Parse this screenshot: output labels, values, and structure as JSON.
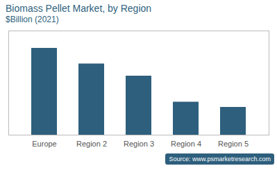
{
  "chart_data": {
    "type": "bar",
    "title": "Biomass Pellet Market, by Region",
    "subtitle": "$Billion (2021)",
    "categories": [
      "Europe",
      "Region 2",
      "Region 3",
      "Region 4",
      "Region 5"
    ],
    "values": [
      10.0,
      8.2,
      6.8,
      3.8,
      3.2
    ],
    "color": "#2e5f7d",
    "ylim": [
      0,
      12.0
    ],
    "grid": false,
    "tick_labels": "x",
    "annotations": [
      "Source: www.psmarketresearch.com"
    ]
  }
}
